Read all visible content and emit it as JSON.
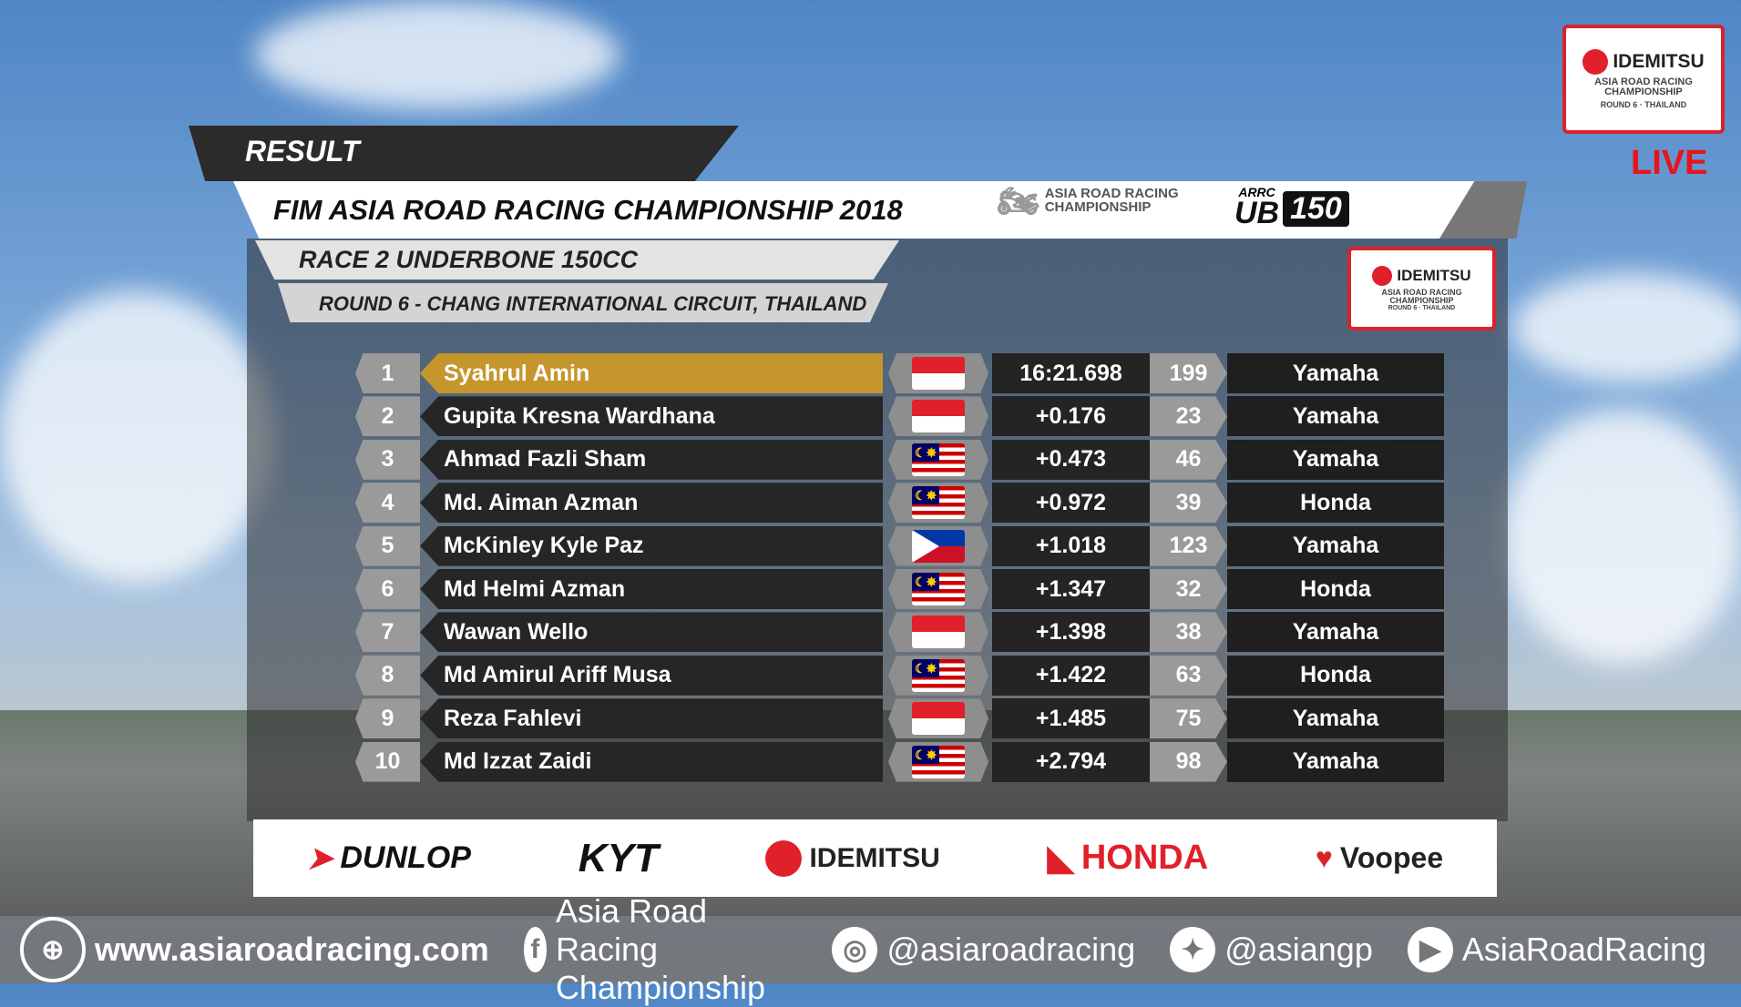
{
  "header": {
    "result_label": "RESULT",
    "title": "FIM ASIA ROAD RACING CHAMPIONSHIP 2018",
    "race": "RACE 2  UNDERBONE 150CC",
    "round": "ROUND 6  - CHANG  INTERNATIONAL  CIRCUIT,  THAILAND",
    "arrc_logo": [
      "ASIA ROAD RACING",
      "CHAMPIONSHIP"
    ],
    "class_logo": {
      "top": "ARRC",
      "left": "UB",
      "right": "150"
    }
  },
  "corner_logo": {
    "brand": "IDEMITSU",
    "line1": "ASIA ROAD RACING",
    "line2": "CHAMPIONSHIP",
    "line3": "ROUND 6 · THAILAND",
    "live": "LIVE"
  },
  "results": [
    {
      "pos": "1",
      "name": "Syahrul Amin",
      "flag": "indonesia",
      "time": "16:21.698",
      "number": "199",
      "team": "Yamaha"
    },
    {
      "pos": "2",
      "name": "Gupita Kresna Wardhana",
      "flag": "indonesia",
      "time": "+0.176",
      "number": "23",
      "team": "Yamaha"
    },
    {
      "pos": "3",
      "name": "Ahmad Fazli Sham",
      "flag": "malaysia",
      "time": "+0.473",
      "number": "46",
      "team": "Yamaha"
    },
    {
      "pos": "4",
      "name": "Md. Aiman Azman",
      "flag": "malaysia",
      "time": "+0.972",
      "number": "39",
      "team": "Honda"
    },
    {
      "pos": "5",
      "name": "McKinley Kyle Paz",
      "flag": "philippines",
      "time": "+1.018",
      "number": "123",
      "team": "Yamaha"
    },
    {
      "pos": "6",
      "name": "Md Helmi Azman",
      "flag": "malaysia",
      "time": "+1.347",
      "number": "32",
      "team": "Honda"
    },
    {
      "pos": "7",
      "name": "Wawan Wello",
      "flag": "indonesia",
      "time": "+1.398",
      "number": "38",
      "team": "Yamaha"
    },
    {
      "pos": "8",
      "name": "Md Amirul Ariff Musa",
      "flag": "malaysia",
      "time": "+1.422",
      "number": "63",
      "team": "Honda"
    },
    {
      "pos": "9",
      "name": "Reza Fahlevi",
      "flag": "indonesia",
      "time": "+1.485",
      "number": "75",
      "team": "Yamaha"
    },
    {
      "pos": "10",
      "name": "Md Izzat Zaidi",
      "flag": "malaysia",
      "time": "+2.794",
      "number": "98",
      "team": "Yamaha"
    }
  ],
  "sponsors": [
    "DUNLOP",
    "KYT",
    "IDEMITSU",
    "HONDA",
    "Voopee"
  ],
  "footer": {
    "website": "www.asiaroadracing.com",
    "facebook": "Asia Road Racing Championship",
    "instagram": "@asiaroadracing",
    "twitter": "@asiangp",
    "youtube": "AsiaRoadRacing"
  },
  "colors": {
    "leader_highlight": "#c5962c",
    "live": "#e8141c",
    "brand_red": "#d8232a"
  }
}
